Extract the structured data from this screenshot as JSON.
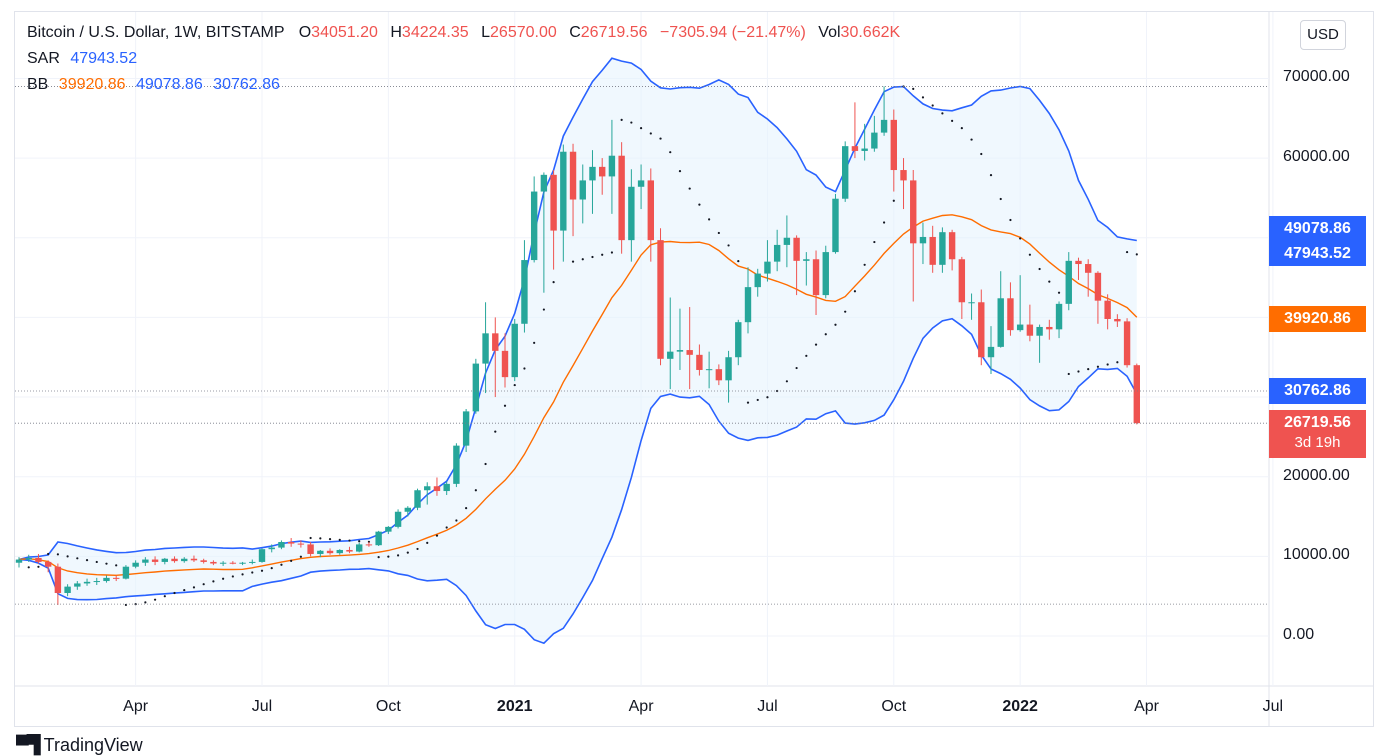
{
  "header": {
    "symbol": "Bitcoin / U.S. Dollar, 1W, BITSTAMP",
    "o_label": "O",
    "o_value": "34051.20",
    "h_label": "H",
    "h_value": "34224.35",
    "l_label": "L",
    "l_value": "26570.00",
    "c_label": "C",
    "c_value": "26719.56",
    "change": "−7305.94 (−21.47%)",
    "vol_label": "Vol",
    "vol_value": "30.662K",
    "sar_label": "SAR",
    "sar_value": "47943.52",
    "bb_label": "BB",
    "bb_basis": "39920.86",
    "bb_upper": "49078.86",
    "bb_lower": "30762.86"
  },
  "currency_button": "USD",
  "price_labels": {
    "upper": "49078.86",
    "sar": "47943.52",
    "basis": "39920.86",
    "lower": "30762.86",
    "close": "26719.56",
    "countdown": "3d 19h"
  },
  "footer": {
    "logo": "TradingView"
  },
  "colors": {
    "up": "#26a69a",
    "down": "#ef5350",
    "band": "#2962ff",
    "basis": "#ff6d00",
    "fill": "#e3f2fd",
    "sar": "#131722"
  },
  "chart_data": {
    "type": "candlestick",
    "y_ticks": [
      "0.00",
      "10000.00",
      "20000.00",
      "60000.00",
      "70000.00"
    ],
    "y_tick_values": [
      0,
      10000,
      20000,
      60000,
      70000
    ],
    "ylim": [
      -8000,
      76000
    ],
    "x_ticks": [
      {
        "label": "Apr",
        "bold": false,
        "week": 12
      },
      {
        "label": "Jul",
        "bold": false,
        "week": 25
      },
      {
        "label": "Oct",
        "bold": false,
        "week": 38
      },
      {
        "label": "2021",
        "bold": true,
        "week": 51
      },
      {
        "label": "Apr",
        "bold": false,
        "week": 64
      },
      {
        "label": "Jul",
        "bold": false,
        "week": 77
      },
      {
        "label": "Oct",
        "bold": false,
        "week": 90
      },
      {
        "label": "2022",
        "bold": true,
        "week": 103
      },
      {
        "label": "Apr",
        "bold": false,
        "week": 116
      },
      {
        "label": "Jul",
        "bold": false,
        "week": 129
      }
    ],
    "candles": [
      [
        9200,
        9900,
        8600,
        9600
      ],
      [
        9600,
        10200,
        9300,
        9800
      ],
      [
        9800,
        10300,
        9100,
        9300
      ],
      [
        9300,
        9500,
        8000,
        8700
      ],
      [
        8700,
        9100,
        3900,
        5400
      ],
      [
        5400,
        6500,
        5000,
        6200
      ],
      [
        6200,
        6900,
        5800,
        6600
      ],
      [
        6600,
        7200,
        6300,
        6800
      ],
      [
        6800,
        7300,
        6400,
        6900
      ],
      [
        6900,
        7600,
        6700,
        7300
      ],
      [
        7300,
        7600,
        6900,
        7200
      ],
      [
        7200,
        8900,
        7100,
        8700
      ],
      [
        8700,
        9500,
        8500,
        9200
      ],
      [
        9200,
        9900,
        8800,
        9600
      ],
      [
        9600,
        10000,
        8900,
        9300
      ],
      [
        9300,
        9800,
        9000,
        9700
      ],
      [
        9700,
        10000,
        9200,
        9400
      ],
      [
        9400,
        9900,
        9200,
        9700
      ],
      [
        9700,
        10100,
        9300,
        9500
      ],
      [
        9500,
        9700,
        9100,
        9300
      ],
      [
        9300,
        9500,
        8900,
        9100
      ],
      [
        9100,
        9400,
        8800,
        9200
      ],
      [
        9200,
        9400,
        9000,
        9100
      ],
      [
        9100,
        9300,
        8900,
        9200
      ],
      [
        9200,
        9600,
        9000,
        9300
      ],
      [
        9300,
        11000,
        9200,
        10900
      ],
      [
        10900,
        11500,
        10500,
        11100
      ],
      [
        11100,
        12000,
        10900,
        11800
      ],
      [
        11800,
        12300,
        11200,
        11600
      ],
      [
        11600,
        12000,
        11100,
        11500
      ],
      [
        11500,
        11800,
        10000,
        10300
      ],
      [
        10300,
        10800,
        9900,
        10700
      ],
      [
        10700,
        11000,
        10200,
        10400
      ],
      [
        10400,
        10900,
        10200,
        10800
      ],
      [
        10800,
        11200,
        10400,
        10600
      ],
      [
        10600,
        11700,
        10500,
        11500
      ],
      [
        11500,
        11800,
        11200,
        11400
      ],
      [
        11400,
        13200,
        11300,
        13100
      ],
      [
        13100,
        13800,
        12800,
        13700
      ],
      [
        13700,
        15900,
        13500,
        15600
      ],
      [
        15600,
        16300,
        15000,
        16100
      ],
      [
        16100,
        18500,
        15800,
        18300
      ],
      [
        18300,
        19300,
        16500,
        18800
      ],
      [
        18800,
        19900,
        17600,
        18200
      ],
      [
        18200,
        19400,
        17700,
        19100
      ],
      [
        19100,
        24200,
        18700,
        23900
      ],
      [
        23900,
        28500,
        23100,
        28200
      ],
      [
        28200,
        34800,
        27900,
        34200
      ],
      [
        34200,
        41900,
        30500,
        38000
      ],
      [
        38000,
        40000,
        30000,
        35800
      ],
      [
        35800,
        38000,
        31200,
        32500
      ],
      [
        32500,
        39800,
        32000,
        39200
      ],
      [
        39200,
        49700,
        38100,
        47200
      ],
      [
        47200,
        57700,
        46900,
        55800
      ],
      [
        55800,
        58200,
        43100,
        57900
      ],
      [
        57900,
        58500,
        46000,
        50900
      ],
      [
        50900,
        61700,
        47000,
        60800
      ],
      [
        60800,
        61800,
        50200,
        54800
      ],
      [
        54800,
        59200,
        51800,
        57200
      ],
      [
        57200,
        61000,
        53000,
        58900
      ],
      [
        58900,
        60000,
        55400,
        57700
      ],
      [
        57700,
        64800,
        53000,
        60300
      ],
      [
        60300,
        62000,
        48000,
        49700
      ],
      [
        49700,
        58600,
        47000,
        56400
      ],
      [
        56400,
        59200,
        53600,
        57200
      ],
      [
        57200,
        58700,
        47000,
        49700
      ],
      [
        49700,
        51200,
        34000,
        34800
      ],
      [
        34800,
        42500,
        31000,
        35700
      ],
      [
        35700,
        41100,
        33400,
        35900
      ],
      [
        35900,
        41300,
        31000,
        35300
      ],
      [
        35300,
        36600,
        32700,
        33400
      ],
      [
        33400,
        35700,
        31100,
        33500
      ],
      [
        33500,
        34100,
        31500,
        32100
      ],
      [
        32100,
        35800,
        29300,
        35000
      ],
      [
        35000,
        39700,
        34000,
        39400
      ],
      [
        39400,
        46300,
        38000,
        43800
      ],
      [
        43800,
        46100,
        42600,
        45500
      ],
      [
        45500,
        49700,
        44500,
        47000
      ],
      [
        47000,
        51000,
        45800,
        49100
      ],
      [
        49100,
        52800,
        46300,
        50000
      ],
      [
        50000,
        50300,
        42800,
        47100
      ],
      [
        47100,
        48200,
        44000,
        47300
      ],
      [
        47300,
        48400,
        40300,
        42800
      ],
      [
        42800,
        49000,
        42400,
        48200
      ],
      [
        48200,
        55500,
        48000,
        54900
      ],
      [
        54900,
        62100,
        54500,
        61500
      ],
      [
        61500,
        67000,
        60000,
        60900
      ],
      [
        60900,
        64300,
        59700,
        61200
      ],
      [
        61200,
        65300,
        60800,
        63200
      ],
      [
        63200,
        69000,
        62800,
        64800
      ],
      [
        64800,
        66100,
        55800,
        58500
      ],
      [
        58500,
        60000,
        53600,
        57200
      ],
      [
        57200,
        58500,
        42000,
        49300
      ],
      [
        49300,
        51900,
        46700,
        50100
      ],
      [
        50100,
        51500,
        45600,
        46600
      ],
      [
        46600,
        51300,
        45600,
        50700
      ],
      [
        50700,
        51000,
        45900,
        47300
      ],
      [
        47300,
        47600,
        39800,
        41900
      ],
      [
        41900,
        43000,
        39700,
        41900
      ],
      [
        41900,
        43500,
        34000,
        35000
      ],
      [
        35000,
        38900,
        32900,
        36300
      ],
      [
        36300,
        45800,
        36200,
        42400
      ],
      [
        42400,
        44400,
        37700,
        38400
      ],
      [
        38400,
        45300,
        38200,
        39100
      ],
      [
        39100,
        41600,
        37000,
        37700
      ],
      [
        37700,
        39100,
        34300,
        38800
      ],
      [
        38800,
        39700,
        37200,
        38500
      ],
      [
        38500,
        42000,
        37400,
        41700
      ],
      [
        41700,
        48200,
        40900,
        47100
      ],
      [
        47100,
        47500,
        44700,
        46700
      ],
      [
        46700,
        47300,
        42600,
        45600
      ],
      [
        45600,
        45800,
        39200,
        42100
      ],
      [
        42100,
        42900,
        38500,
        39800
      ],
      [
        39800,
        40400,
        38800,
        39500
      ],
      [
        39500,
        39900,
        33700,
        34000
      ],
      [
        34000,
        34200,
        26570,
        26719.56
      ]
    ]
  }
}
